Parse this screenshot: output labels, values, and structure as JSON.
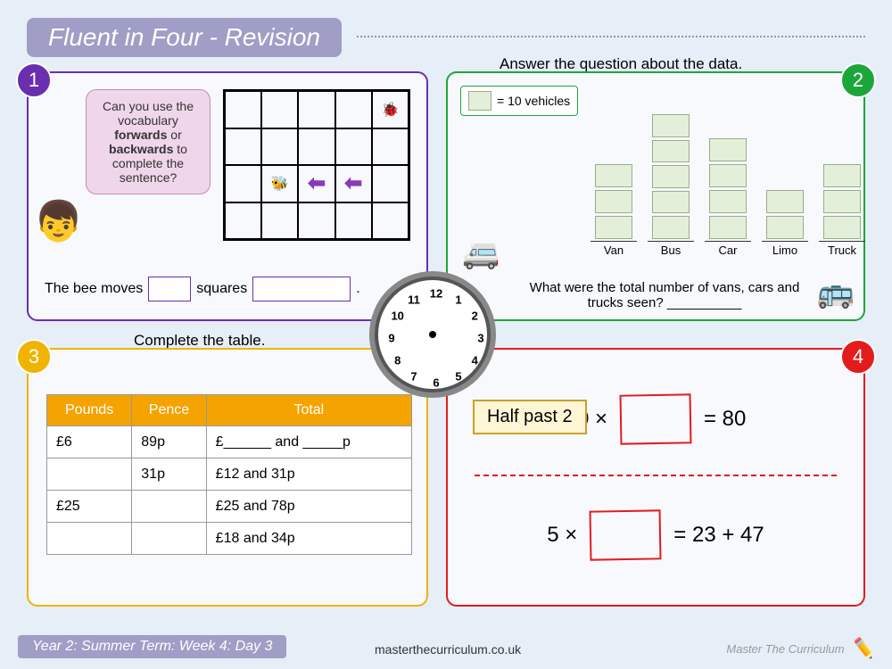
{
  "header": {
    "title": "Fluent in Four - Revision"
  },
  "q1": {
    "badge": "1",
    "speech_pre": "Can you use the vocabulary ",
    "speech_b1": "forwards",
    "speech_mid": " or ",
    "speech_b2": "backwards",
    "speech_post": " to complete the sentence?",
    "sentence_a": "The bee moves",
    "sentence_b": "squares",
    "sentence_c": ".",
    "blank1_w": 48,
    "blank2_w": 110,
    "grid_cols": 5,
    "grid_rows": 4,
    "ladybird_cell": 4,
    "bee_cell": 11,
    "arrow_cells": [
      12,
      13
    ],
    "border_color": "#6a2eb0"
  },
  "q2": {
    "badge": "2",
    "title": "Answer the question about the data.",
    "legend_text": "= 10 vehicles",
    "categories": [
      "Van",
      "Bus",
      "Car",
      "Limo",
      "Truck"
    ],
    "counts": [
      3,
      5,
      4,
      2,
      3
    ],
    "question": "What were the total number of vans, cars and trucks seen? __________",
    "cell_color": "#e4efd9",
    "cell_border": "#9aac8a",
    "border_color": "#1ca63a"
  },
  "q3": {
    "badge": "3",
    "title": "Complete the table.",
    "headers": [
      "Pounds",
      "Pence",
      "Total"
    ],
    "rows": [
      [
        "£6",
        "89p",
        "£______ and _____p"
      ],
      [
        "",
        "31p",
        "£12 and 31p"
      ],
      [
        "£25",
        "",
        "£25 and 78p"
      ],
      [
        "",
        "",
        "£18 and 34p"
      ]
    ],
    "header_bg": "#f4a300",
    "border_color": "#f0b400"
  },
  "q4": {
    "badge": "4",
    "eq1_left": "10 ×",
    "eq1_right": "= 80",
    "eq2_left": "5 ×",
    "eq2_right": "= 23 + 47",
    "border_color": "#e31b1b"
  },
  "clock": {
    "label": "Half past 2"
  },
  "footer": {
    "left": "Year 2: Summer Term: Week 4: Day 3",
    "mid": "masterthecurriculum.co.uk",
    "right": "Master The Curriculum"
  }
}
